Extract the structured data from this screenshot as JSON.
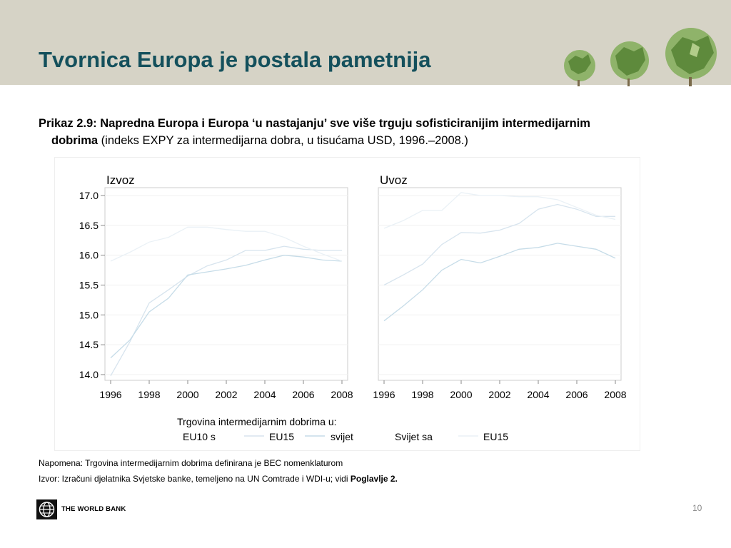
{
  "slide": {
    "title": "Tvornica Europa je postala pametnija",
    "caption_bold_1": "Prikaz 2.9: Napredna Europa i Europa ‘u nastajanju’ sve više trguju sofisticiranijim intermedijarnim",
    "caption_bold_2": "dobrima",
    "caption_rest": " (indeks EXPY za intermedijarna dobra, u tisućama USD, 1996.–2008.)",
    "note": "Napomena: Trgovina intermedijarnim dobrima definirana je BEC nomenklaturom",
    "source_prefix": "Izvor: Izračuni djelatnika Svjetske banke, temeljeno na UN Comtrade i WDI-u; vidi ",
    "source_bold": "Poglavlje 2.",
    "footer_logo_text": "THE WORLD BANK",
    "page_number": "10"
  },
  "colors": {
    "header_bg": "#d6d3c6",
    "title": "#14505c",
    "line_eu10": "#d7e4ee",
    "line_eu15": "#c6dce8",
    "line_world": "#eaf1f6"
  },
  "chart_data": {
    "type": "line",
    "x": [
      1996,
      1997,
      1998,
      1999,
      2000,
      2001,
      2002,
      2003,
      2004,
      2005,
      2006,
      2007,
      2008
    ],
    "x_ticks": [
      "1996",
      "1998",
      "2000",
      "2002",
      "2004",
      "2006",
      "2008"
    ],
    "y_ticks": [
      "14.0",
      "14.5",
      "15.0",
      "15.5",
      "16.0",
      "16.5",
      "17.0"
    ],
    "ylim": [
      14.0,
      17.0
    ],
    "legend_title": "Trgovina intermedijarnim dobrima u:",
    "legend_labels": [
      "EU10 s",
      "EU15",
      "svijet",
      "Svijet sa",
      "EU15"
    ],
    "panels": [
      {
        "title": "Izvoz",
        "series": [
          {
            "name": "EU10 s EU15",
            "values": [
              13.98,
              14.55,
              15.2,
              15.42,
              15.65,
              15.82,
              15.92,
              16.08,
              16.08,
              16.15,
              16.1,
              16.08,
              16.08
            ]
          },
          {
            "name": "EU10 svijet",
            "values": [
              14.28,
              14.58,
              15.05,
              15.28,
              15.67,
              15.72,
              15.77,
              15.83,
              15.92,
              16.0,
              15.97,
              15.92,
              15.9
            ]
          },
          {
            "name": "Svijet sa EU15",
            "values": [
              15.9,
              16.05,
              16.22,
              16.3,
              16.47,
              16.47,
              16.43,
              16.4,
              16.4,
              16.3,
              16.15,
              16.02,
              15.9
            ]
          }
        ]
      },
      {
        "title": "Uvoz",
        "series": [
          {
            "name": "EU10 s EU15",
            "values": [
              15.5,
              15.67,
              15.85,
              16.18,
              16.38,
              16.37,
              16.42,
              16.53,
              16.77,
              16.85,
              16.77,
              16.65,
              16.65
            ]
          },
          {
            "name": "EU10 svijet",
            "values": [
              14.9,
              15.15,
              15.42,
              15.75,
              15.93,
              15.87,
              15.98,
              16.1,
              16.13,
              16.2,
              16.15,
              16.1,
              15.95
            ]
          },
          {
            "name": "Svijet sa EU15",
            "values": [
              16.45,
              16.58,
              16.75,
              16.75,
              17.05,
              17.0,
              17.0,
              16.98,
              16.98,
              16.93,
              16.8,
              16.67,
              16.6
            ]
          }
        ]
      }
    ]
  }
}
